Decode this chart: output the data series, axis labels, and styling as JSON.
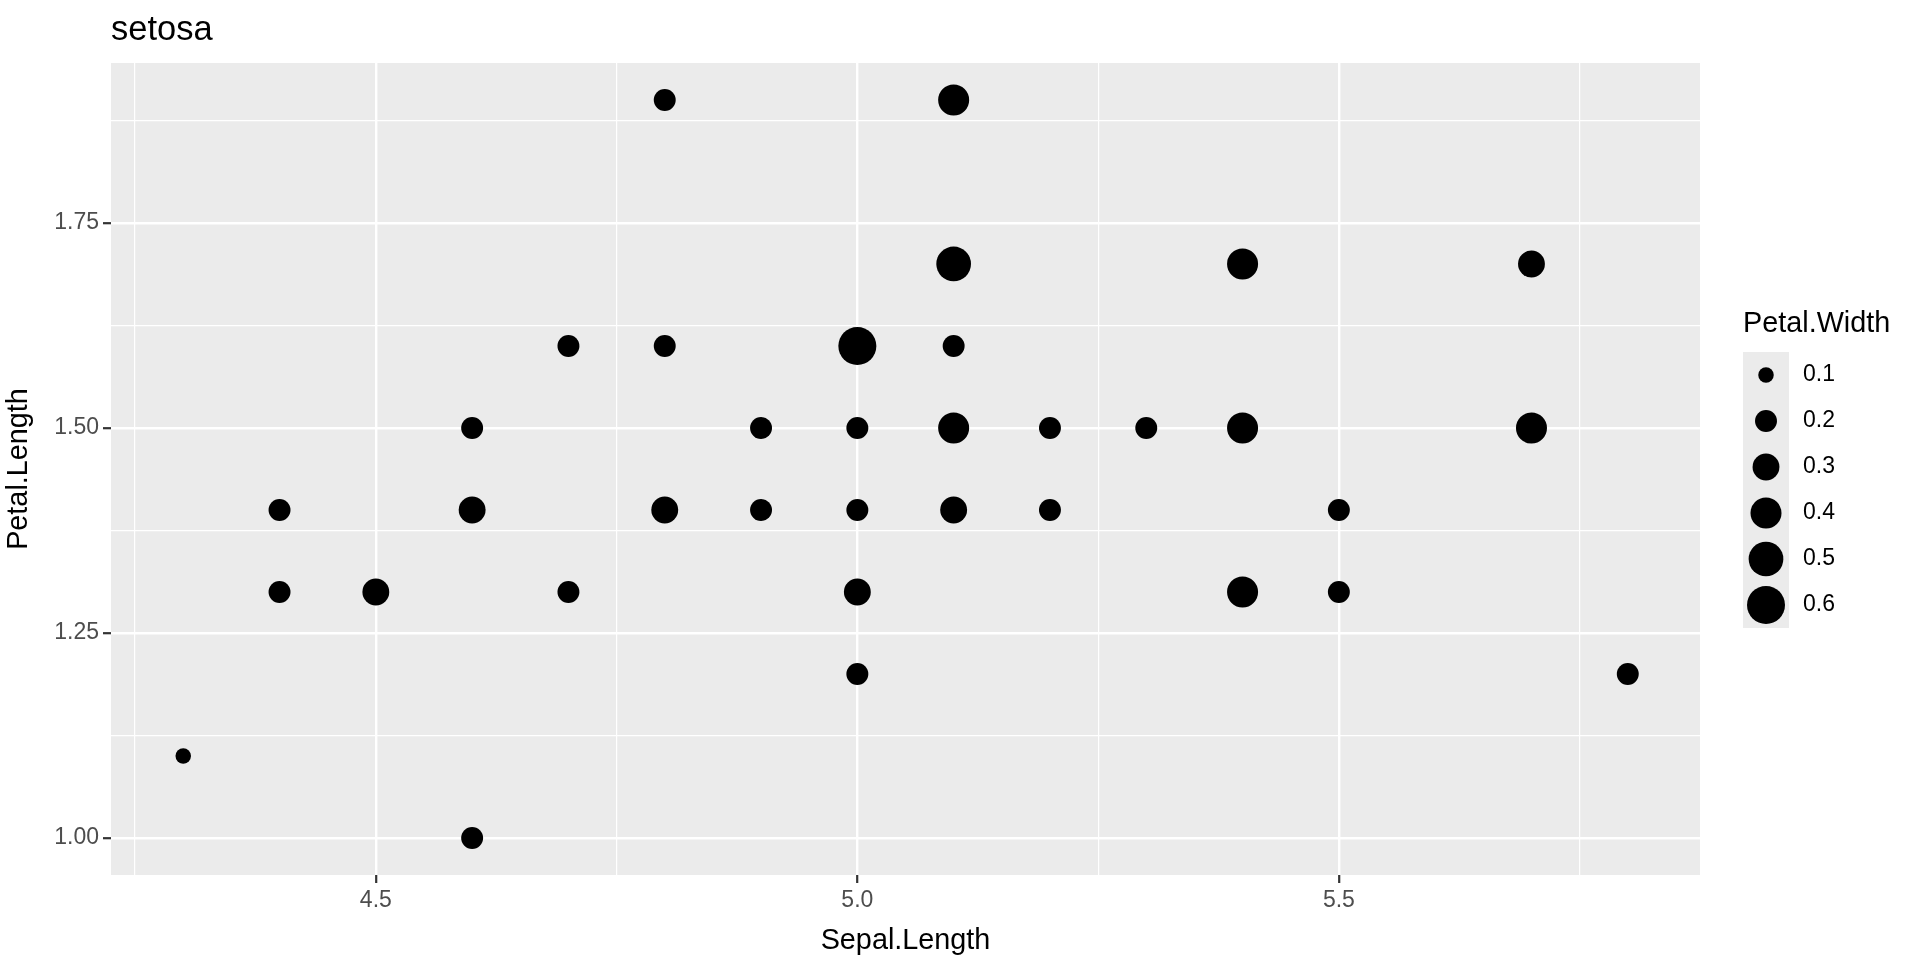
{
  "chart_data": {
    "type": "bubble",
    "title": "setosa",
    "xlabel": "Sepal.Length",
    "ylabel": "Petal.Length",
    "legend_title": "Petal.Width",
    "x": [
      4.3,
      4.4,
      4.4,
      4.5,
      4.6,
      4.6,
      4.6,
      4.7,
      4.7,
      4.8,
      4.8,
      4.8,
      4.9,
      4.9,
      5.0,
      5.0,
      5.0,
      5.0,
      5.0,
      5.1,
      5.1,
      5.1,
      5.1,
      5.1,
      5.2,
      5.2,
      5.3,
      5.4,
      5.4,
      5.4,
      5.5,
      5.5,
      5.7,
      5.7,
      5.8
    ],
    "values": [
      1.1,
      1.4,
      1.3,
      1.3,
      1.5,
      1.4,
      1.0,
      1.6,
      1.3,
      1.9,
      1.6,
      1.4,
      1.5,
      1.4,
      1.6,
      1.5,
      1.4,
      1.3,
      1.2,
      1.9,
      1.7,
      1.6,
      1.5,
      1.4,
      1.5,
      1.4,
      1.5,
      1.7,
      1.5,
      1.3,
      1.4,
      1.3,
      1.7,
      1.5,
      1.2
    ],
    "sizes": [
      0.1,
      0.2,
      0.2,
      0.3,
      0.2,
      0.3,
      0.2,
      0.2,
      0.2,
      0.2,
      0.2,
      0.3,
      0.2,
      0.2,
      0.6,
      0.2,
      0.2,
      0.3,
      0.2,
      0.4,
      0.5,
      0.2,
      0.4,
      0.3,
      0.2,
      0.2,
      0.2,
      0.4,
      0.4,
      0.4,
      0.2,
      0.2,
      0.3,
      0.4,
      0.2
    ],
    "size_legend": [
      0.1,
      0.2,
      0.3,
      0.4,
      0.5,
      0.6
    ],
    "color": "#000000",
    "xlim": [
      4.225,
      5.875
    ],
    "ylim": [
      0.955,
      1.945
    ],
    "xticks": [
      {
        "value": 4.25,
        "label": null
      },
      {
        "value": 4.5,
        "label": "4.5"
      },
      {
        "value": 4.75,
        "label": null
      },
      {
        "value": 5.0,
        "label": "5.0"
      },
      {
        "value": 5.25,
        "label": null
      },
      {
        "value": 5.5,
        "label": "5.5"
      },
      {
        "value": 5.75,
        "label": null
      }
    ],
    "yticks": [
      {
        "value": 1.0,
        "label": "1.00"
      },
      {
        "value": 1.125,
        "label": null
      },
      {
        "value": 1.25,
        "label": "1.25"
      },
      {
        "value": 1.375,
        "label": null
      },
      {
        "value": 1.5,
        "label": "1.50"
      },
      {
        "value": 1.625,
        "label": null
      },
      {
        "value": 1.75,
        "label": "1.75"
      },
      {
        "value": 1.875,
        "label": null
      }
    ],
    "grid": true
  }
}
